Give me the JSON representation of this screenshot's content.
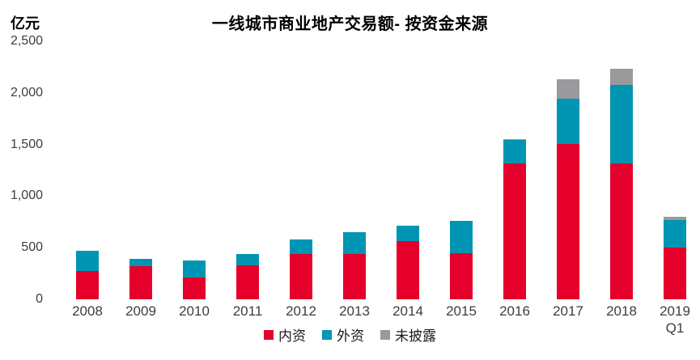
{
  "chart_data": {
    "type": "bar",
    "stacked": true,
    "title": "一线城市商业地产交易额- 按资金来源",
    "unit_label": "亿元",
    "categories": [
      "2008",
      "2009",
      "2010",
      "2011",
      "2012",
      "2013",
      "2014",
      "2015",
      "2016",
      "2017",
      "2018",
      "2019 Q1"
    ],
    "series": [
      {
        "key": "domestic",
        "name": "内资",
        "color": "#e4002b",
        "values": [
          275,
          320,
          215,
          330,
          440,
          440,
          565,
          445,
          1320,
          1505,
          1315,
          505
        ]
      },
      {
        "key": "foreign",
        "name": "外资",
        "color": "#0095b3",
        "values": [
          195,
          70,
          160,
          110,
          140,
          210,
          145,
          315,
          225,
          440,
          765,
          265
        ]
      },
      {
        "key": "undisclosed",
        "name": "未披露",
        "color": "#9a999b",
        "values": [
          0,
          0,
          0,
          0,
          0,
          0,
          0,
          0,
          10,
          185,
          150,
          30
        ]
      }
    ],
    "xlabel": "",
    "ylabel": "",
    "ylim": [
      0,
      2500
    ],
    "yticks": [
      {
        "value": 0,
        "label": "0"
      },
      {
        "value": 500,
        "label": "500"
      },
      {
        "value": 1000,
        "label": "1,000"
      },
      {
        "value": 1500,
        "label": "1,500"
      },
      {
        "value": 2000,
        "label": "2,000"
      },
      {
        "value": 2500,
        "label": "2,500"
      }
    ],
    "grid": false,
    "legend_position": "bottom"
  }
}
